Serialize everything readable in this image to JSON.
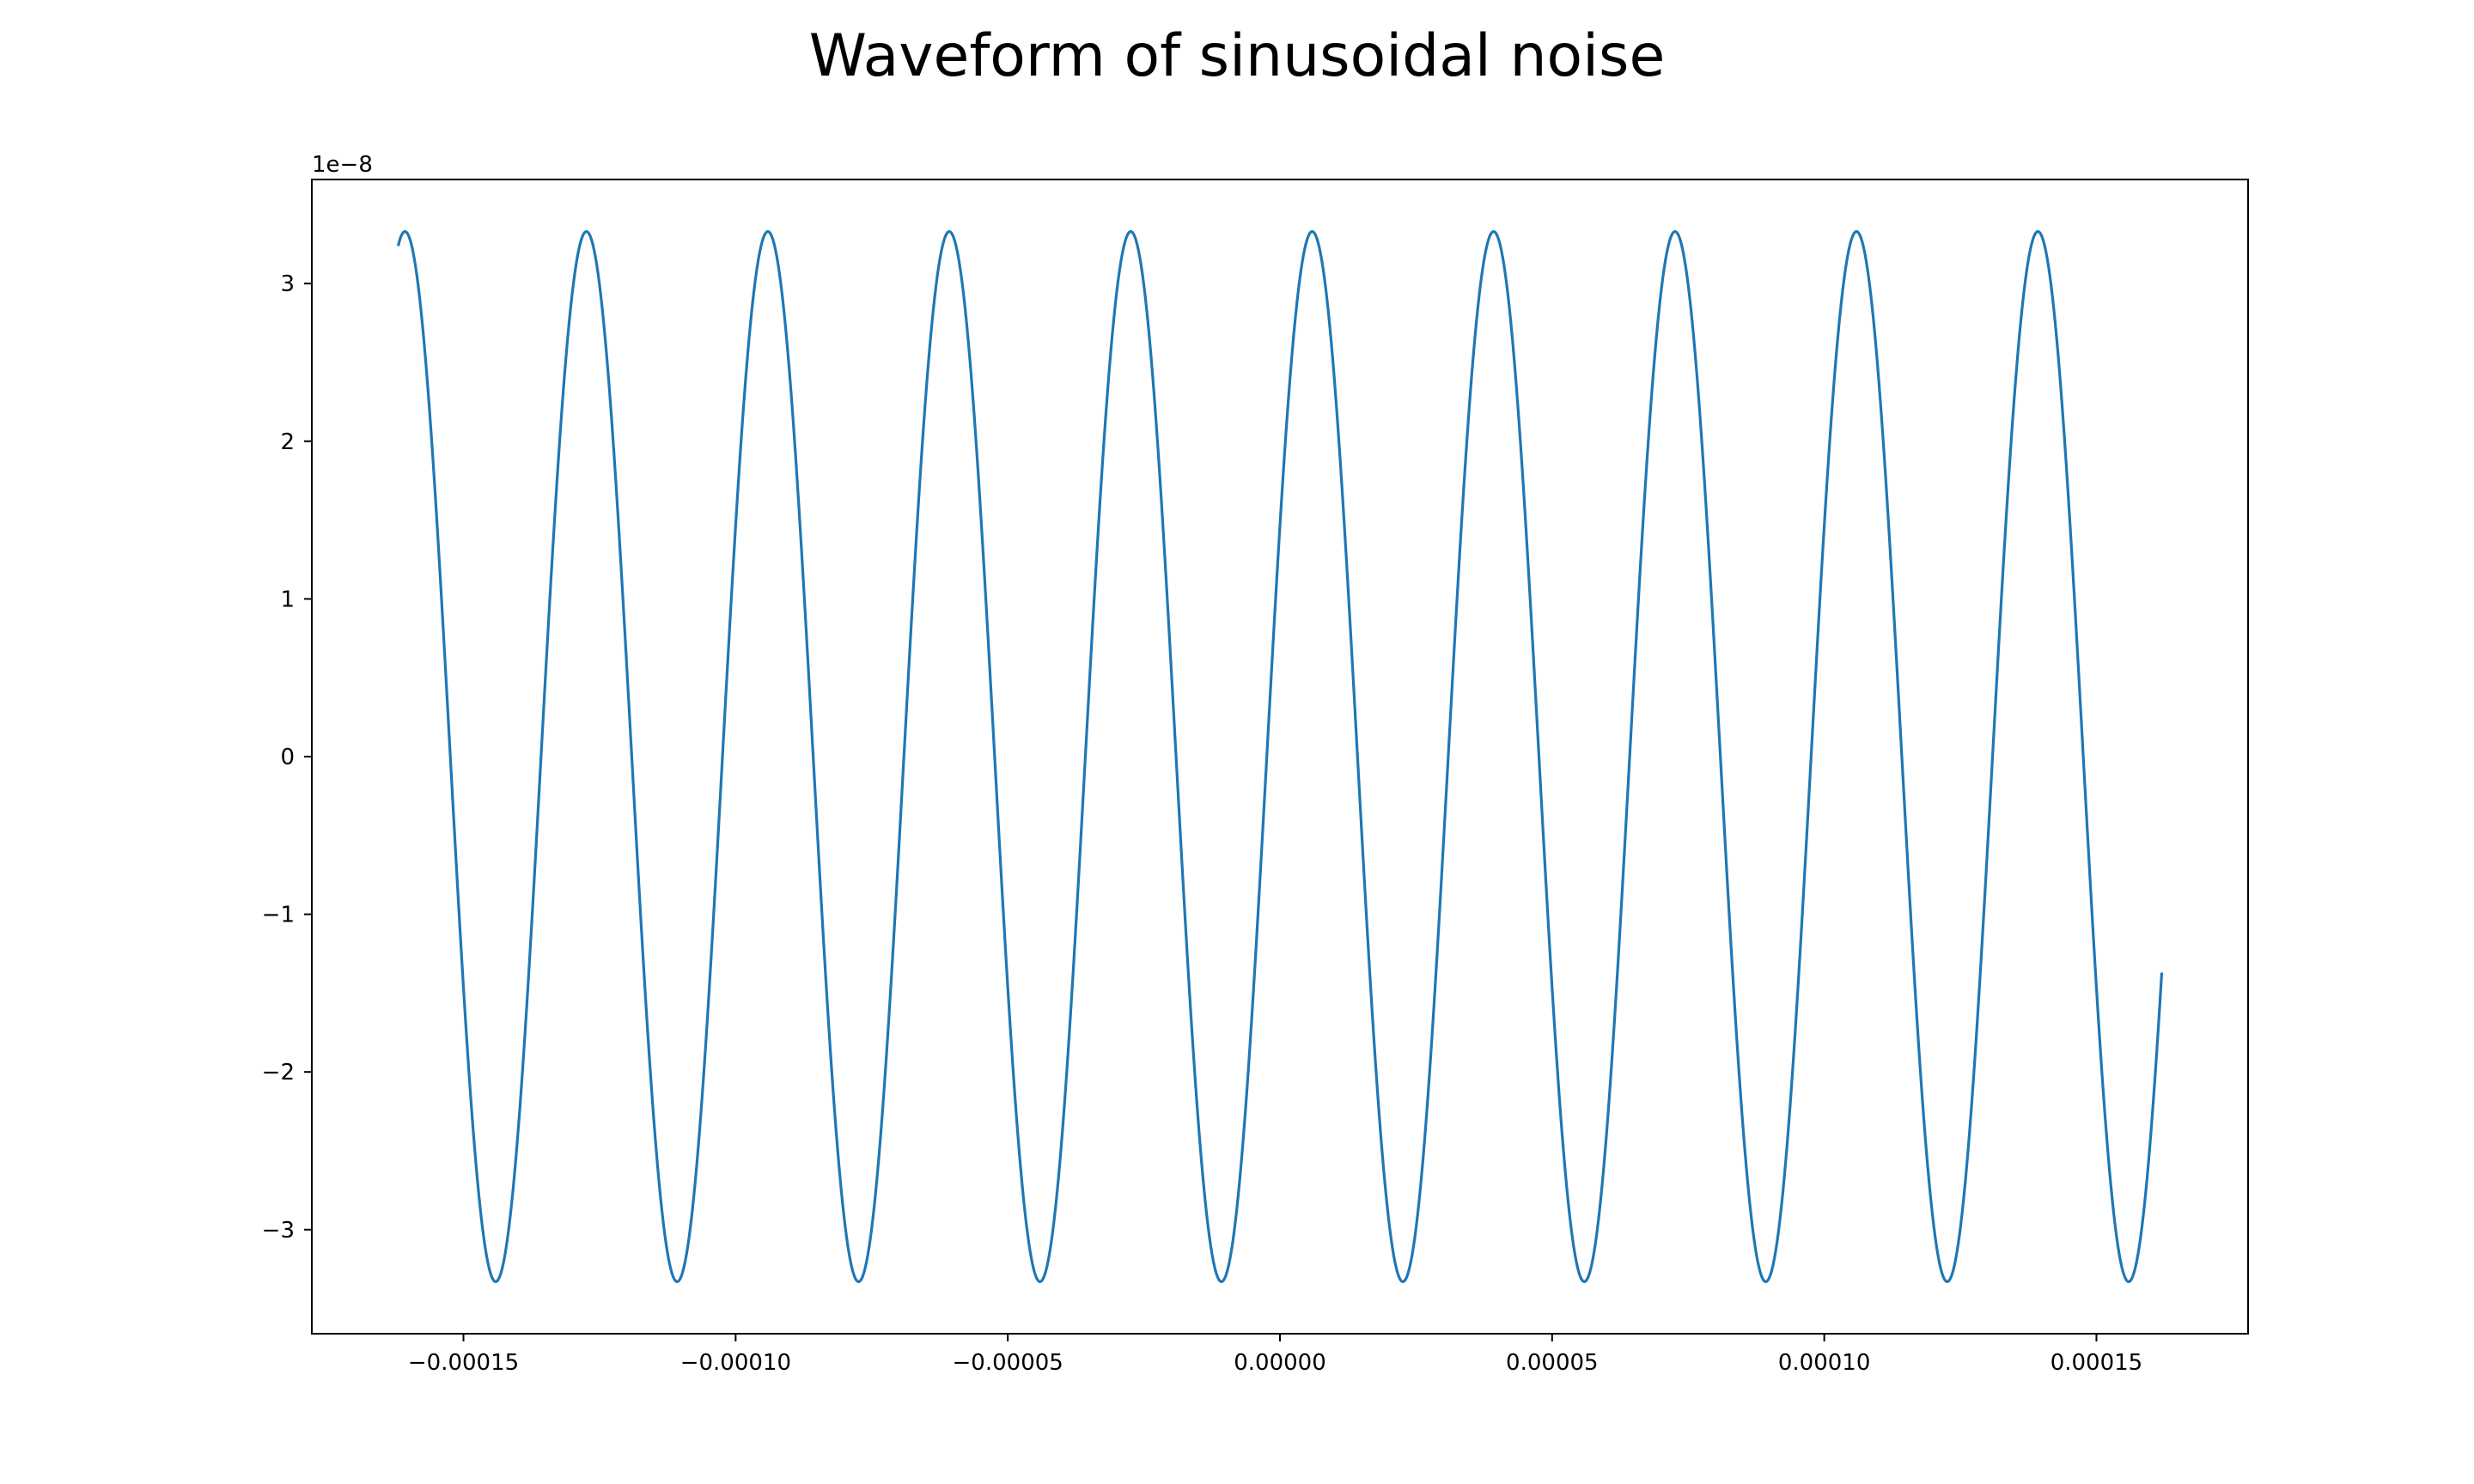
{
  "chart_data": {
    "type": "line",
    "title": "Waveform of sinusoidal noise",
    "xlabel": "",
    "ylabel": "",
    "y_offset_label": "1e−8",
    "xlim": [
      -0.00017786,
      0.00017786
    ],
    "ylim": [
      -3.66,
      3.66
    ],
    "grid": false,
    "legend": "none",
    "x_ticks": [
      {
        "value": -0.00015,
        "label": "−0.00015"
      },
      {
        "value": -0.0001,
        "label": "−0.00010"
      },
      {
        "value": -5e-05,
        "label": "−0.00005"
      },
      {
        "value": 0.0,
        "label": "0.00000"
      },
      {
        "value": 5e-05,
        "label": "0.00005"
      },
      {
        "value": 0.0001,
        "label": "0.00010"
      },
      {
        "value": 0.00015,
        "label": "0.00015"
      }
    ],
    "y_ticks": [
      {
        "value": 3,
        "label": "3"
      },
      {
        "value": 2,
        "label": "2"
      },
      {
        "value": 1,
        "label": "1"
      },
      {
        "value": 0,
        "label": "0"
      },
      {
        "value": -1,
        "label": "−1"
      },
      {
        "value": -2,
        "label": "−2"
      },
      {
        "value": -3,
        "label": "−3"
      }
    ],
    "series": [
      {
        "color": "#1f77b4",
        "x_start": -0.000162,
        "x_end": 0.000162,
        "amplitude": 3.33,
        "frequency_hz": 30000,
        "phase_rad": 0.4556
      }
    ]
  }
}
